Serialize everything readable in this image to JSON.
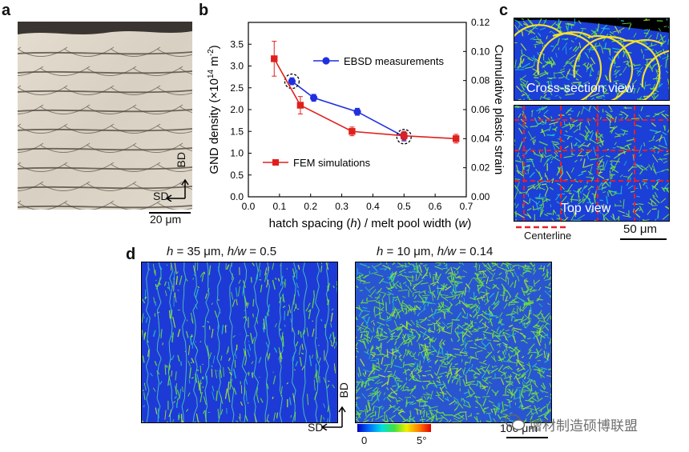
{
  "panels": {
    "a": {
      "label": "a",
      "axis_bd": "BD",
      "axis_sd": "SD",
      "scale_bar": "20 μm"
    },
    "b": {
      "label": "b"
    },
    "c": {
      "label": "c",
      "cross_section_label": "Cross-section view",
      "top_label": "Top view",
      "centerline_label": "Centerline",
      "scale_bar": "50 μm"
    },
    "d": {
      "label": "d",
      "left_title_h": "h",
      "left_title_mid": " = 35 μm, ",
      "left_title_hw": "h/w",
      "left_title_end": " = 0.5",
      "right_title_h": "h",
      "right_title_mid": " = 10 μm, ",
      "right_title_hw": "h/w",
      "right_title_end": " = 0.14",
      "axis_bd": "BD",
      "axis_sd": "SD",
      "colorbar_min": "0",
      "colorbar_max": "5°",
      "scale_bar": "100 μm"
    }
  },
  "watermark": "增材制造硕博联盟",
  "colors": {
    "ebsd": "#1f2fe0",
    "fem": "#e0201c",
    "map_base": "#1c3fd8",
    "map_green": "#5fe03a",
    "optical_bg": "#ddd6c8"
  },
  "chart_data": {
    "type": "line",
    "xlabel": "hatch spacing (h) / melt pool width (w)",
    "ylabel": "GND density (×10^14 m^-2)",
    "ylabel_right": "Cumulative plastic strain",
    "xlim": [
      0.0,
      0.7
    ],
    "ylim": [
      0.0,
      4.0
    ],
    "ylim_right": [
      0.0,
      0.12
    ],
    "x_ticks": [
      "0.0",
      "0.1",
      "0.2",
      "0.3",
      "0.4",
      "0.5",
      "0.6",
      "0.7"
    ],
    "y_ticks": [
      "0.0",
      "0.5",
      "1.0",
      "1.5",
      "2.0",
      "2.5",
      "3.0",
      "3.5"
    ],
    "y_ticks_right": [
      "0.00",
      "0.02",
      "0.04",
      "0.06",
      "0.08",
      "0.10",
      "0.12"
    ],
    "series": [
      {
        "name": "EBSD measurements",
        "axis": "left",
        "x": [
          0.14,
          0.21,
          0.35,
          0.5
        ],
        "y": [
          2.65,
          2.27,
          1.95,
          1.38
        ],
        "err": [
          0.08,
          0.08,
          0.08,
          0.1
        ],
        "highlight": [
          true,
          false,
          false,
          true
        ]
      },
      {
        "name": "FEM simulations",
        "axis": "right",
        "x": [
          0.083,
          0.167,
          0.333,
          0.5,
          0.667
        ],
        "y": [
          0.095,
          0.063,
          0.045,
          0.042,
          0.04
        ],
        "err": [
          0.012,
          0.006,
          0.003,
          0.003,
          0.003
        ]
      }
    ],
    "legend": [
      "EBSD measurements",
      "FEM simulations"
    ]
  }
}
